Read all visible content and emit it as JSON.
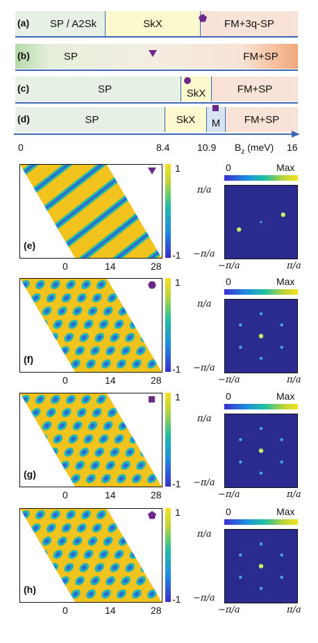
{
  "phase_diagram": {
    "rows": [
      {
        "tag": "(a)",
        "segments": [
          {
            "label": "SP / A2Sk",
            "color": "#e6f0e4"
          },
          {
            "label": "SkX",
            "color": "#fdf9cf"
          },
          {
            "label": "FM+3q-SP",
            "color": "#f9e2d7"
          }
        ],
        "marker": "pentagon"
      },
      {
        "tag": "(b)",
        "segments": [
          {
            "label": "SP",
            "color": "gradient"
          },
          {
            "label": "FM+SP",
            "color": "gradient"
          }
        ],
        "marker": "triangle"
      },
      {
        "tag": "(c)",
        "segments": [
          {
            "label": "SP",
            "color": "#e6f0e4"
          },
          {
            "label": "SkX",
            "color": "#fdf9cf"
          },
          {
            "label": "FM+SP",
            "color": "#f9e2d7"
          }
        ],
        "marker": "circle"
      },
      {
        "tag": "(d)",
        "segments": [
          {
            "label": "SP",
            "color": "#e6f0e4"
          },
          {
            "label": "SkX",
            "color": "#fdf9cf"
          },
          {
            "label": "M",
            "color": "#d9e4f3"
          },
          {
            "label": "FM+SP",
            "color": "#f9e2d7"
          }
        ],
        "marker": "square"
      }
    ],
    "axis": {
      "ticks": [
        "0",
        "8.4",
        "10.9",
        "16"
      ],
      "label_main": "B",
      "label_sub": "z",
      "label_unit": " (meV)"
    },
    "marker_color": "#6b2a8a",
    "line_color": "#3b67b4"
  },
  "panels": [
    {
      "tag": "(e)",
      "marker": "triangle",
      "pattern": "stripe"
    },
    {
      "tag": "(f)",
      "marker": "circle",
      "pattern": "skx"
    },
    {
      "tag": "(g)",
      "marker": "square",
      "pattern": "skx"
    },
    {
      "tag": "(h)",
      "marker": "pentagon",
      "pattern": "skx"
    }
  ],
  "real_space_axis": {
    "ticks": [
      "0",
      "14",
      "28"
    ]
  },
  "colorbar": {
    "max_label": "1",
    "min_label": "-1"
  },
  "fft": {
    "scale_min": "0",
    "scale_max": "Max",
    "pos_label": "π/a",
    "neg_label": "−π/a",
    "background": "#2b2a8e"
  }
}
